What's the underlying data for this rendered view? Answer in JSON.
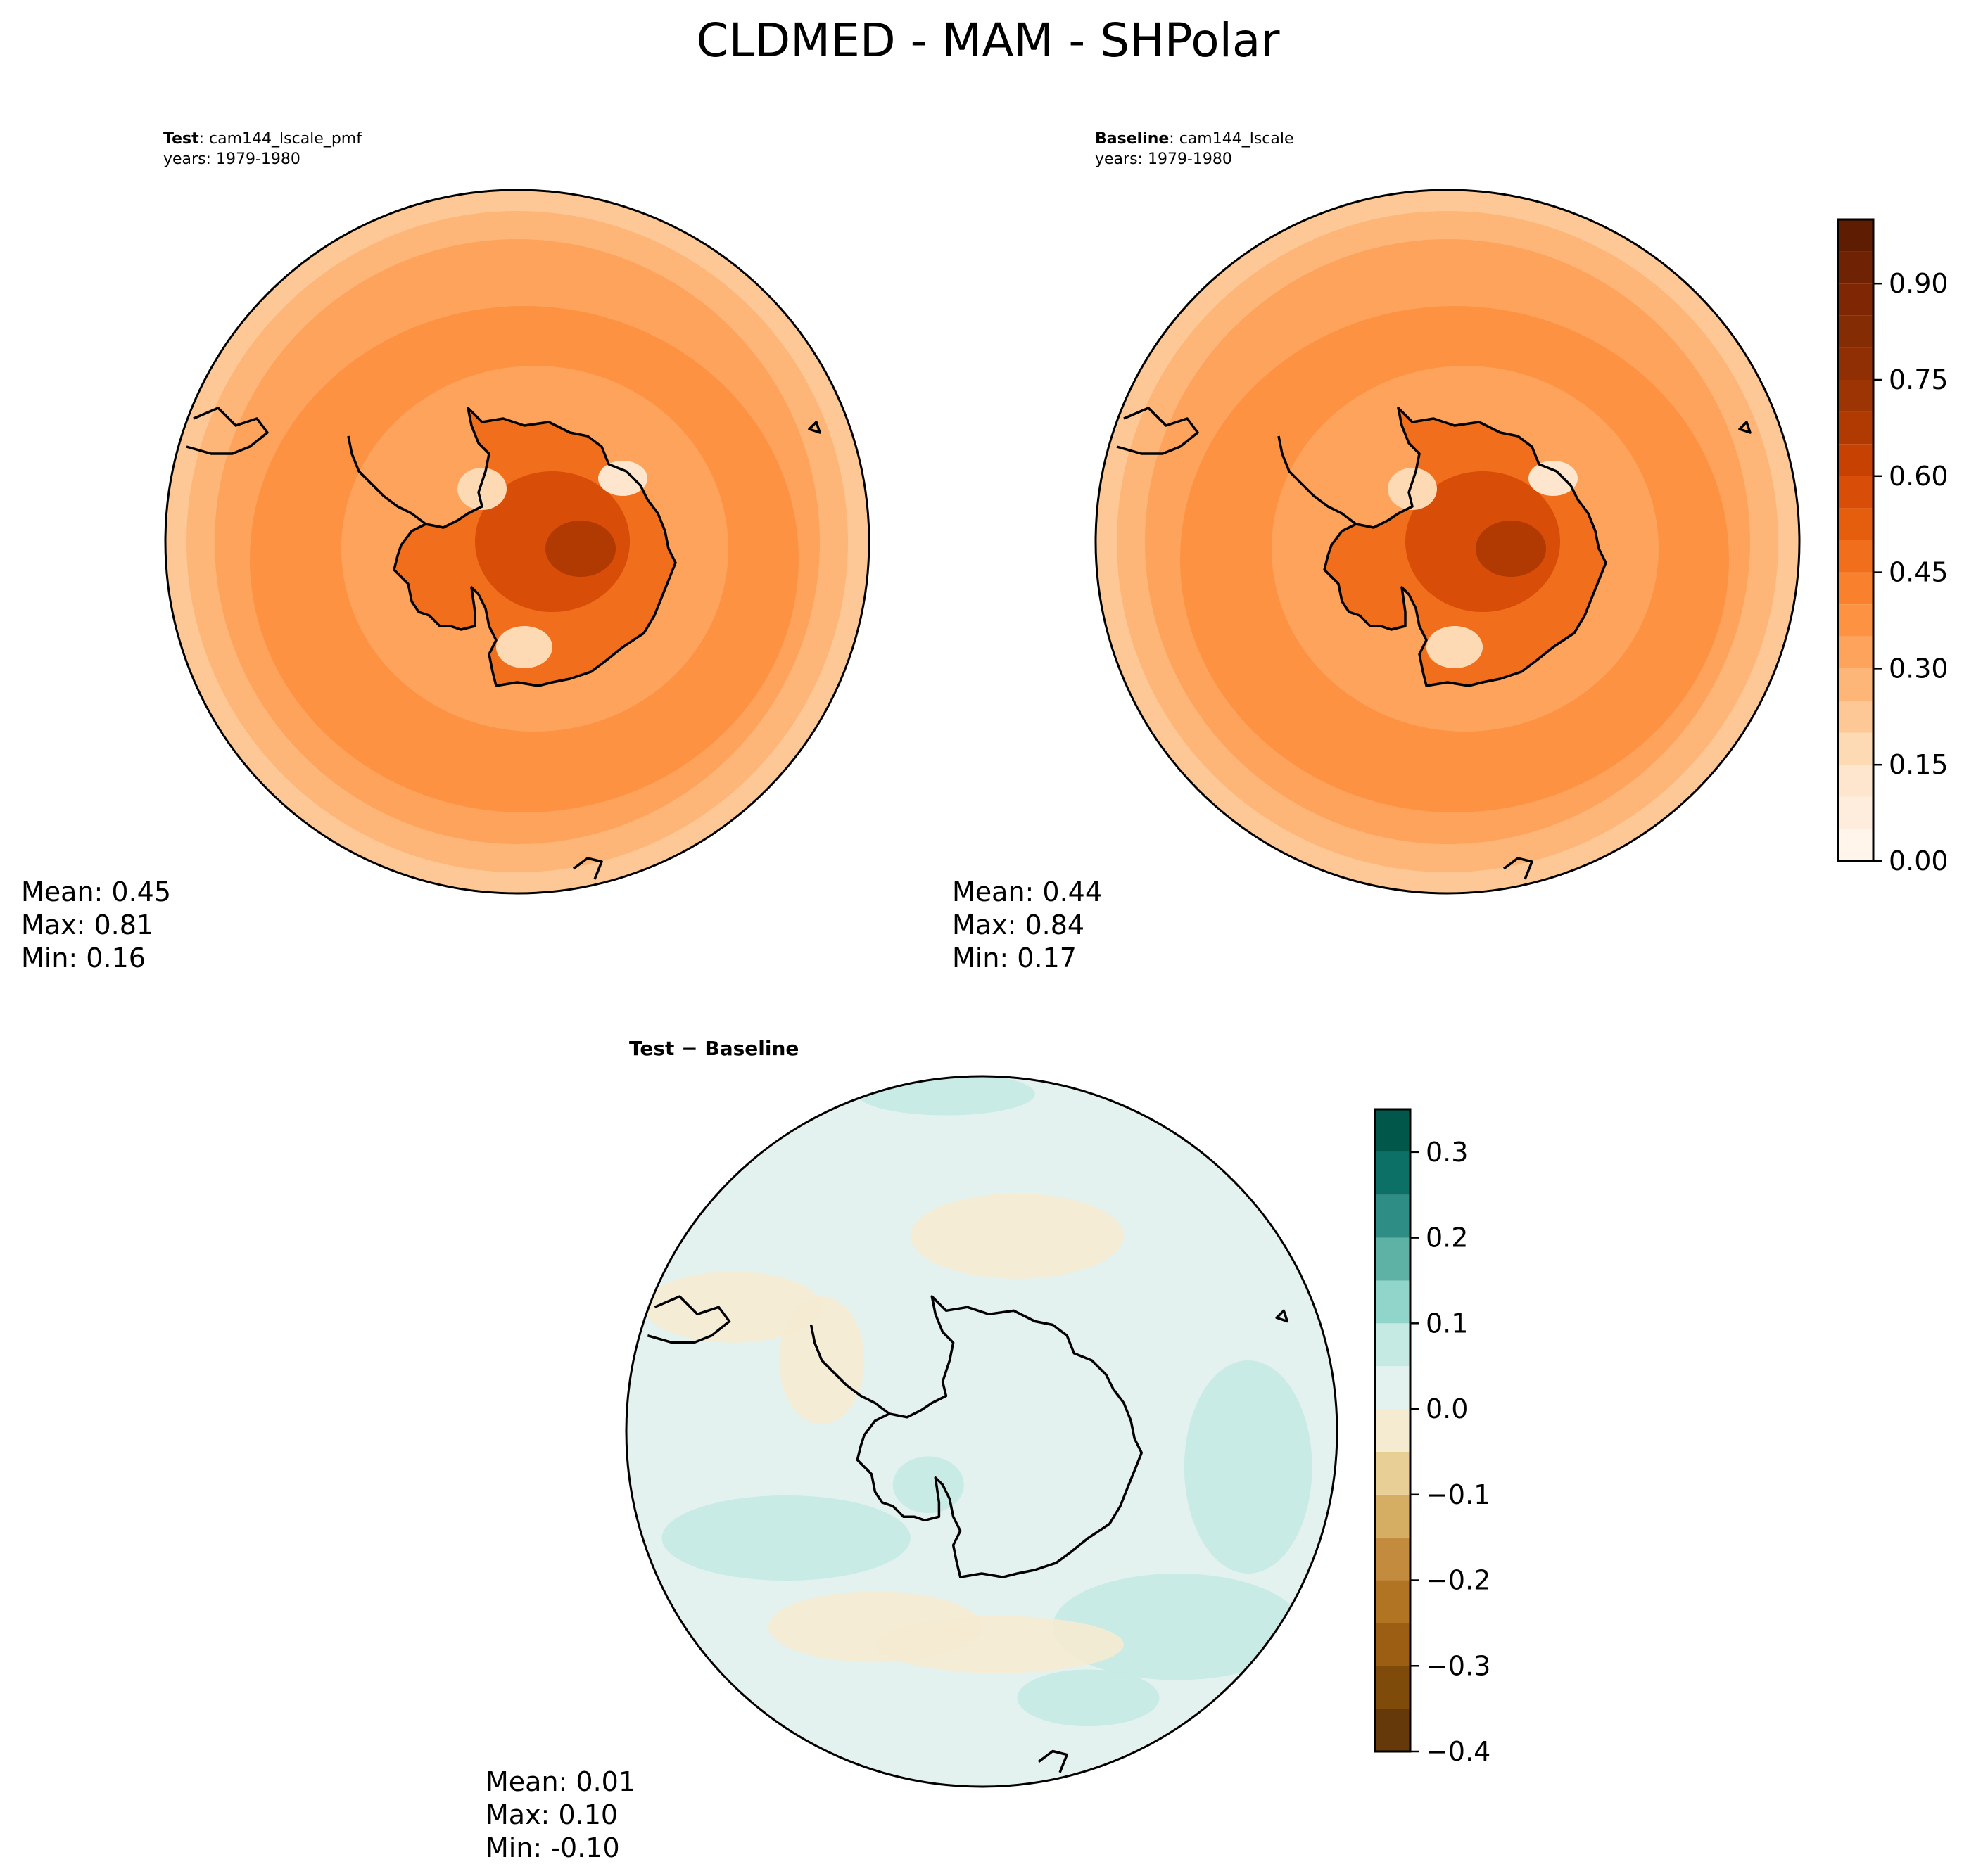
{
  "figure": {
    "title": "CLDMED - MAM - SHPolar"
  },
  "panels": [
    {
      "id": "test",
      "label_bold": "Test",
      "label_rest": ": cam144_lscale_pmf",
      "years": "years: 1979-1980",
      "stats": {
        "mean": "Mean:  0.45",
        "max": "Max:  0.81",
        "min": "Min:  0.16"
      }
    },
    {
      "id": "baseline",
      "label_bold": "Baseline",
      "label_rest": ": cam144_lscale",
      "years": "years: 1979-1980",
      "stats": {
        "mean": "Mean:  0.44",
        "max": "Max:  0.84",
        "min": "Min:  0.17"
      }
    },
    {
      "id": "diff",
      "title": "Test − Baseline",
      "stats": {
        "mean": "Mean:  0.01",
        "max": "Max:  0.10",
        "min": "Min: -0.10"
      }
    }
  ],
  "chart_data": [
    {
      "type": "heatmap",
      "projection": "south-polar-stereographic",
      "title": "Test : cam144_lscale_pmf",
      "subtitle": "years: 1979-1980",
      "summary": {
        "mean": 0.45,
        "max": 0.81,
        "min": 0.16
      },
      "colormap": "Oranges",
      "colorbar": {
        "levels": [
          0.0,
          0.05,
          0.1,
          0.15,
          0.2,
          0.25,
          0.3,
          0.35,
          0.4,
          0.45,
          0.5,
          0.55,
          0.6,
          0.65,
          0.7,
          0.75,
          0.8,
          0.85,
          0.9,
          0.95,
          1.0
        ],
        "ticks": [
          "0.00",
          "0.15",
          "0.30",
          "0.45",
          "0.60",
          "0.75",
          "0.90"
        ],
        "colors": [
          "#fff5eb",
          "#feeddc",
          "#fee6ce",
          "#fdd9b4",
          "#fdc895",
          "#fdb678",
          "#fda35c",
          "#fd9243",
          "#f9802d",
          "#f06e1c",
          "#e55e0e",
          "#d84d07",
          "#c64102",
          "#b13a03",
          "#9c3403",
          "#8f2f03",
          "#842c03",
          "#7f2704",
          "#6f2204",
          "#5e1c03"
        ]
      },
      "features": [
        "Antarctic coastline",
        "South America tip",
        "New Zealand tip"
      ]
    },
    {
      "type": "heatmap",
      "projection": "south-polar-stereographic",
      "title": "Baseline : cam144_lscale",
      "subtitle": "years: 1979-1980",
      "summary": {
        "mean": 0.44,
        "max": 0.84,
        "min": 0.17
      },
      "colormap": "Oranges",
      "colorbar": {
        "levels": [
          0.0,
          0.05,
          0.1,
          0.15,
          0.2,
          0.25,
          0.3,
          0.35,
          0.4,
          0.45,
          0.5,
          0.55,
          0.6,
          0.65,
          0.7,
          0.75,
          0.8,
          0.85,
          0.9,
          0.95,
          1.0
        ],
        "ticks": [
          "0.00",
          "0.15",
          "0.30",
          "0.45",
          "0.60",
          "0.75",
          "0.90"
        ]
      }
    },
    {
      "type": "heatmap",
      "projection": "south-polar-stereographic",
      "title": "Test − Baseline",
      "summary": {
        "mean": 0.01,
        "max": 0.1,
        "min": -0.1
      },
      "colormap": "BrBG",
      "colorbar": {
        "levels": [
          -0.4,
          -0.35,
          -0.3,
          -0.25,
          -0.2,
          -0.15,
          -0.1,
          -0.05,
          0.0,
          0.05,
          0.1,
          0.15,
          0.2,
          0.25,
          0.3,
          0.35
        ],
        "ticks": [
          "−0.4",
          "−0.3",
          "−0.2",
          "−0.1",
          "0.0",
          "0.1",
          "0.2",
          "0.3"
        ],
        "colors": [
          "#66390a",
          "#7f4b0a",
          "#9b5e12",
          "#b17423",
          "#c38b3e",
          "#d6ae63",
          "#e7cf95",
          "#f5ebd1",
          "#e4f2ef",
          "#c5eae4",
          "#91d4c9",
          "#5db1a5",
          "#2e8e86",
          "#0c7066",
          "#01574a"
        ]
      }
    }
  ]
}
